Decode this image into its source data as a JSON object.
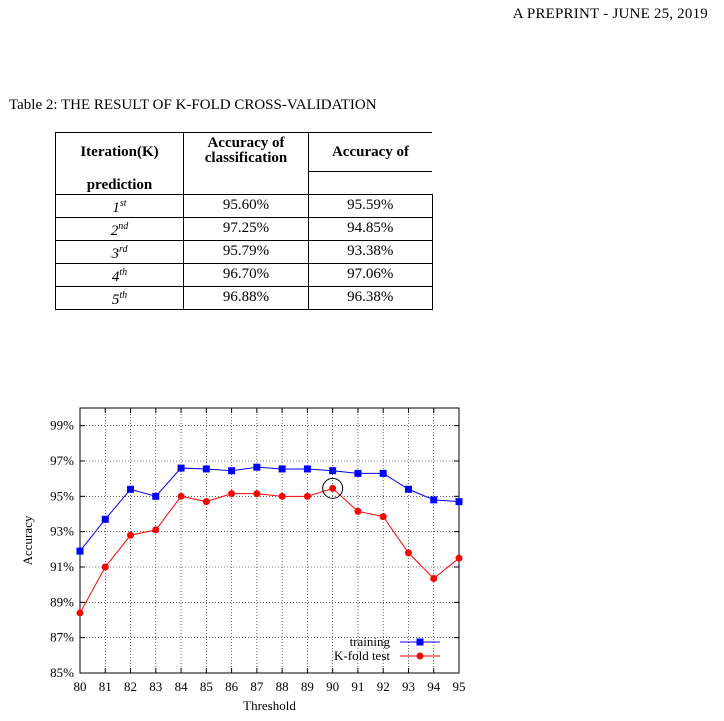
{
  "header": {
    "text_prefix": "A",
    "text_sc": "PREPRINT",
    "text_date": " - J",
    "text_date_sc": "UNE",
    "text_rest": " 25, 2019"
  },
  "table": {
    "caption": "Table 2: THE RESULT OF K-FOLD CROSS-VALIDATION",
    "headers": {
      "iteration": "Iteration(K)",
      "prediction": "prediction",
      "classification": "Accuracy of classification",
      "accuracy_of": "Accuracy of"
    },
    "rows": [
      {
        "k": "1",
        "suffix": "st",
        "classification": "95.60%",
        "prediction": "95.59%"
      },
      {
        "k": "2",
        "suffix": "nd",
        "classification": "97.25%",
        "prediction": "94.85%"
      },
      {
        "k": "3",
        "suffix": "rd",
        "classification": "95.79%",
        "prediction": "93.38%"
      },
      {
        "k": "4",
        "suffix": "th",
        "classification": "96.70%",
        "prediction": "97.06%"
      },
      {
        "k": "5",
        "suffix": "th",
        "classification": "96.88%",
        "prediction": "96.38%"
      }
    ]
  },
  "chart_data": {
    "type": "line",
    "xlabel": "Threshold",
    "ylabel": "Accuracy",
    "x": [
      80,
      81,
      82,
      83,
      84,
      85,
      86,
      87,
      88,
      89,
      90,
      91,
      92,
      93,
      94,
      95
    ],
    "xlim": [
      80,
      95
    ],
    "ylim": [
      85,
      100
    ],
    "yticks": [
      "85%",
      "87%",
      "89%",
      "91%",
      "93%",
      "95%",
      "97%",
      "99%"
    ],
    "ytick_values": [
      85,
      87,
      89,
      91,
      93,
      95,
      97,
      99
    ],
    "grid": true,
    "legend_position": "bottom-right",
    "series": [
      {
        "name": "training",
        "color": "#0000ff",
        "marker": "square",
        "values": [
          91.9,
          93.7,
          95.4,
          95.0,
          96.6,
          96.55,
          96.45,
          96.65,
          96.55,
          96.55,
          96.45,
          96.3,
          96.3,
          95.4,
          94.8,
          94.7
        ]
      },
      {
        "name": "K-fold test",
        "color": "#ff0000",
        "marker": "circle",
        "values": [
          88.4,
          91.0,
          92.8,
          93.1,
          95.0,
          94.7,
          95.15,
          95.15,
          95.0,
          95.0,
          95.45,
          94.15,
          93.85,
          91.8,
          90.35,
          91.5
        ]
      }
    ],
    "highlight": {
      "series": "K-fold test",
      "x": 90
    }
  }
}
